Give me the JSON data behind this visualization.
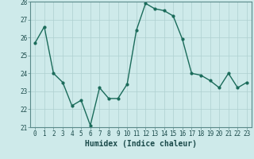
{
  "xlabel": "Humidex (Indice chaleur)",
  "ylabel": "",
  "x": [
    0,
    1,
    2,
    3,
    4,
    5,
    6,
    7,
    8,
    9,
    10,
    11,
    12,
    13,
    14,
    15,
    16,
    17,
    18,
    19,
    20,
    21,
    22,
    23
  ],
  "y": [
    25.7,
    26.6,
    24.0,
    23.5,
    22.2,
    22.5,
    21.1,
    23.2,
    22.6,
    22.6,
    23.4,
    26.4,
    27.9,
    27.6,
    27.5,
    27.2,
    25.9,
    24.0,
    23.9,
    23.6,
    23.2,
    24.0,
    23.2,
    23.5
  ],
  "line_color": "#1a6b5a",
  "marker": "o",
  "marker_size": 2,
  "line_width": 1.0,
  "bg_color": "#ceeaea",
  "grid_color": "#aed0d0",
  "ylim": [
    21,
    28
  ],
  "yticks": [
    21,
    22,
    23,
    24,
    25,
    26,
    27,
    28
  ],
  "xlim": [
    -0.5,
    23.5
  ],
  "xticks": [
    0,
    1,
    2,
    3,
    4,
    5,
    6,
    7,
    8,
    9,
    10,
    11,
    12,
    13,
    14,
    15,
    16,
    17,
    18,
    19,
    20,
    21,
    22,
    23
  ],
  "tick_fontsize": 5.5,
  "xlabel_fontsize": 7,
  "title_fontsize": 7
}
